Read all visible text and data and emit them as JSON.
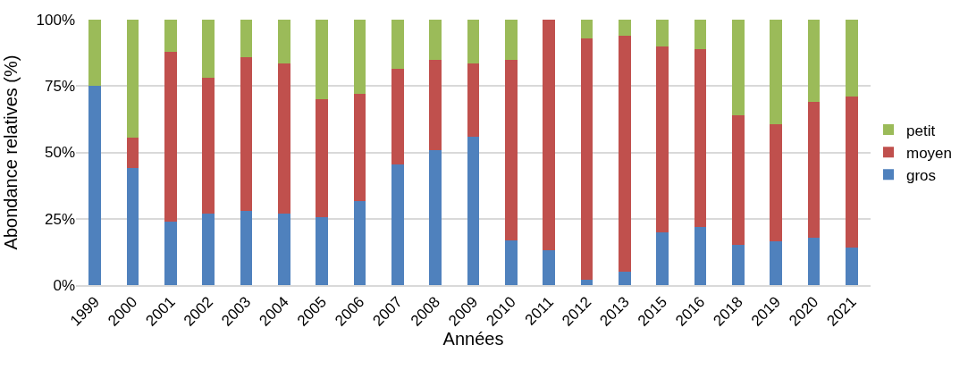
{
  "chart_data": {
    "type": "bar",
    "stacked": true,
    "xlabel": "Années",
    "ylabel": "Abondance relatives (%)",
    "categories": [
      "1999",
      "2000",
      "2001",
      "2002",
      "2003",
      "2004",
      "2005",
      "2006",
      "2007",
      "2008",
      "2009",
      "2010",
      "2011",
      "2012",
      "2013",
      "2015",
      "2016",
      "2018",
      "2019",
      "2020",
      "2021"
    ],
    "series": [
      {
        "name": "gros",
        "color": "#4f81bd",
        "values": [
          75,
          44,
          24,
          27,
          28,
          27,
          25.5,
          31.5,
          45.5,
          51,
          56,
          17,
          13,
          2,
          5,
          20,
          22,
          15,
          16.5,
          18,
          14
        ]
      },
      {
        "name": "moyen",
        "color": "#c0504d",
        "values": [
          0,
          11.5,
          64,
          51,
          58,
          56.5,
          44.5,
          40.5,
          36,
          34,
          27.5,
          68,
          87,
          91,
          89,
          70,
          67,
          49,
          44,
          51,
          57
        ]
      },
      {
        "name": "petit",
        "color": "#9bbb59",
        "values": [
          25,
          44.5,
          12,
          22,
          14,
          16.5,
          30,
          28,
          18.5,
          15,
          16.5,
          15,
          0,
          7,
          6,
          10,
          11,
          36,
          39.5,
          31,
          29
        ]
      }
    ],
    "ylim": [
      0,
      100
    ],
    "yticks": [
      {
        "value": 0,
        "label": "0%"
      },
      {
        "value": 25,
        "label": "25%"
      },
      {
        "value": 50,
        "label": "50%"
      },
      {
        "value": 75,
        "label": "75%"
      },
      {
        "value": 100,
        "label": "100%"
      }
    ],
    "grid": "y",
    "legend": "right"
  }
}
